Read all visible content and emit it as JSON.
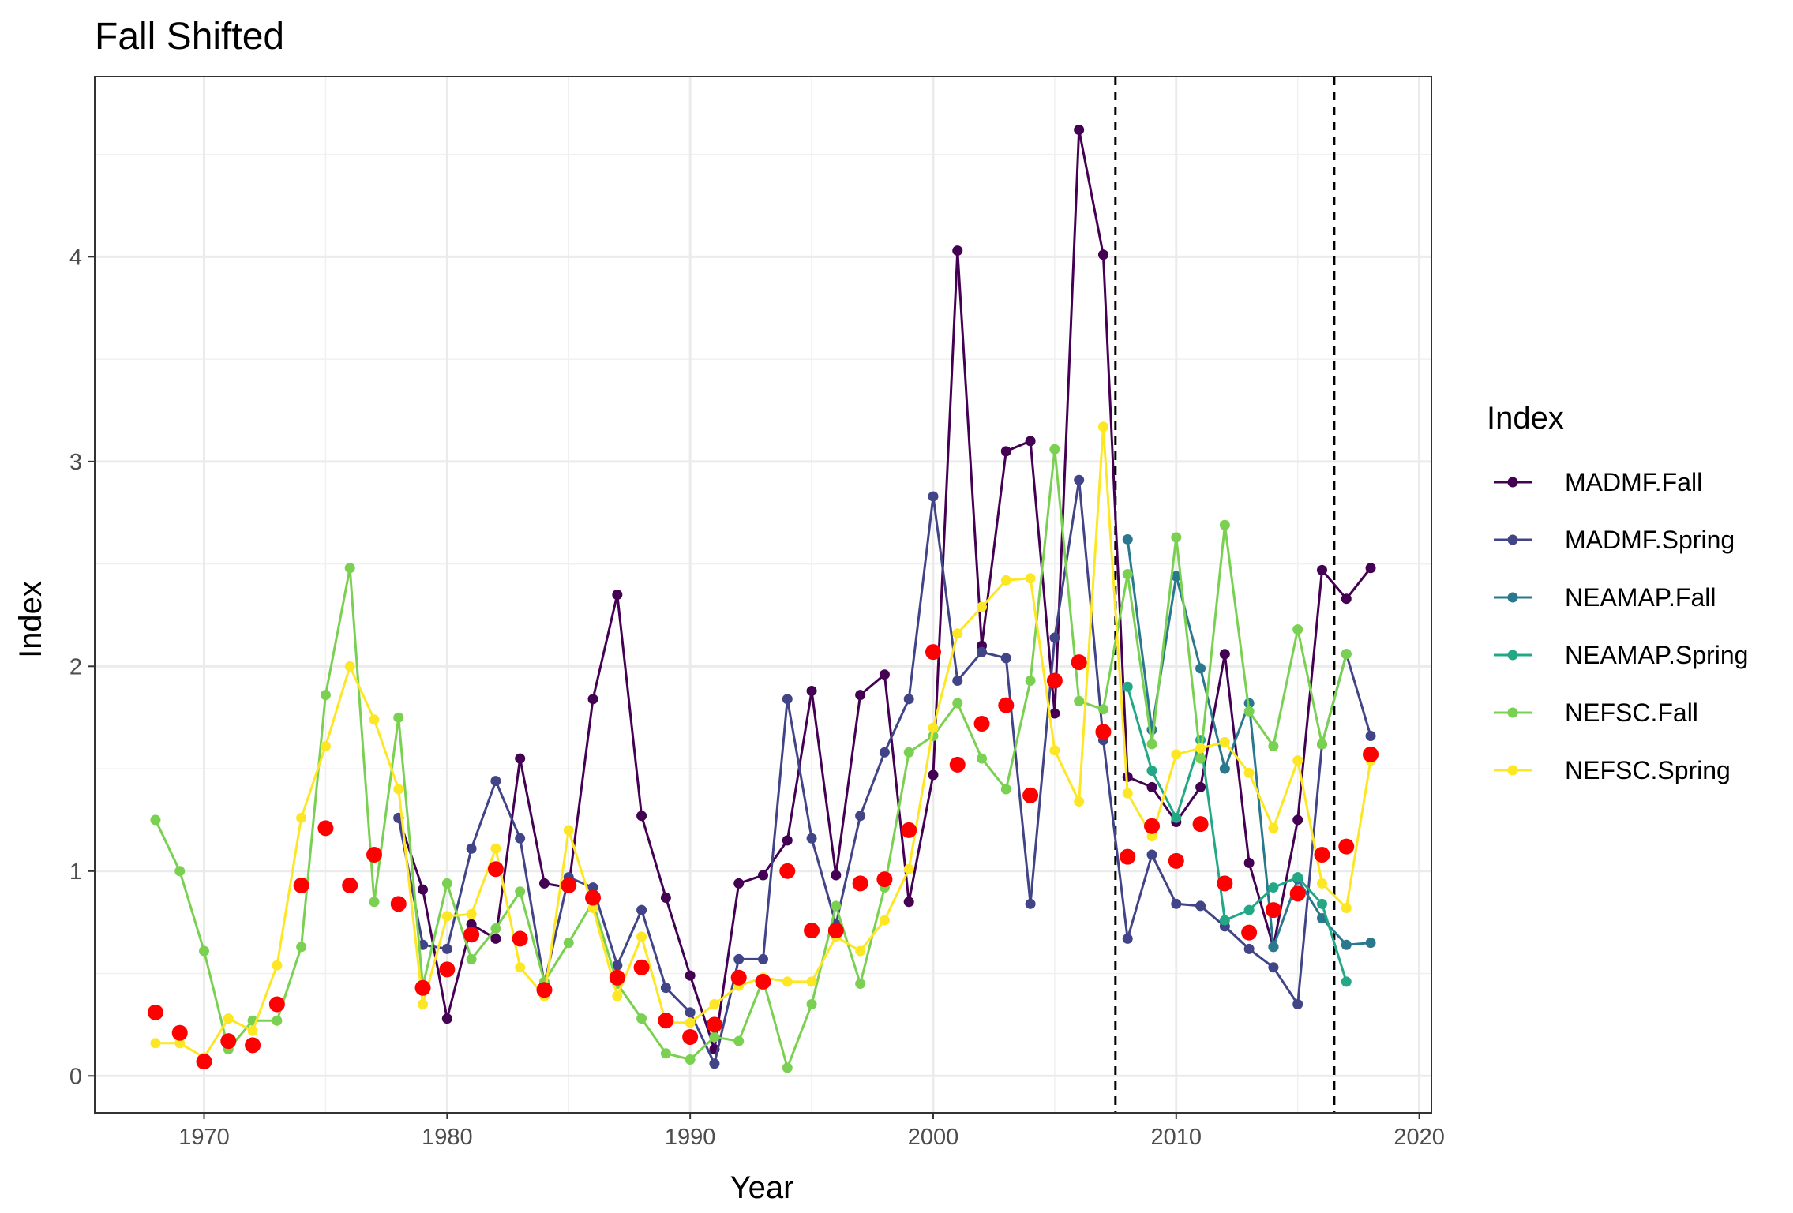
{
  "chart_data": {
    "type": "line",
    "title": "Fall Shifted",
    "xlabel": "Year",
    "ylabel": "Index",
    "xlim": [
      1965.5,
      2020.5
    ],
    "ylim": [
      -0.18,
      4.88
    ],
    "x_ticks": [
      1970,
      1980,
      1990,
      2000,
      2010,
      2020
    ],
    "y_ticks": [
      0,
      1,
      2,
      3,
      4
    ],
    "grid": true,
    "vlines": [
      2007.5,
      2016.5
    ],
    "legend": {
      "title": "Index",
      "position": "right"
    },
    "series": [
      {
        "name": "MADMF.Fall",
        "color": "#440154",
        "points": [
          [
            1978,
            1.26
          ],
          [
            1979,
            0.91
          ],
          [
            1980,
            0.28
          ],
          [
            1981,
            0.74
          ],
          [
            1982,
            0.67
          ],
          [
            1983,
            1.55
          ],
          [
            1984,
            0.94
          ],
          [
            1985,
            0.92
          ],
          [
            1986,
            1.84
          ],
          [
            1987,
            2.35
          ],
          [
            1988,
            1.27
          ],
          [
            1989,
            0.87
          ],
          [
            1990,
            0.49
          ],
          [
            1991,
            0.13
          ],
          [
            1992,
            0.94
          ],
          [
            1993,
            0.98
          ],
          [
            1994,
            1.15
          ],
          [
            1995,
            1.88
          ],
          [
            1996,
            0.98
          ],
          [
            1997,
            1.86
          ],
          [
            1998,
            1.96
          ],
          [
            1999,
            0.85
          ],
          [
            2000,
            1.47
          ],
          [
            2001,
            4.03
          ],
          [
            2002,
            2.1
          ],
          [
            2003,
            3.05
          ],
          [
            2004,
            3.1
          ],
          [
            2005,
            1.77
          ],
          [
            2006,
            4.62
          ],
          [
            2007,
            4.01
          ],
          [
            2008,
            1.46
          ],
          [
            2009,
            1.41
          ],
          [
            2010,
            1.24
          ],
          [
            2011,
            1.41
          ],
          [
            2012,
            2.06
          ],
          [
            2013,
            1.04
          ],
          [
            2014,
            0.63
          ],
          [
            2015,
            1.25
          ],
          [
            2016,
            2.47
          ],
          [
            2017,
            2.33
          ],
          [
            2018,
            2.48
          ]
        ]
      },
      {
        "name": "MADMF.Spring",
        "color": "#414487",
        "points": [
          [
            1978,
            1.26
          ],
          [
            1979,
            0.64
          ],
          [
            1980,
            0.62
          ],
          [
            1981,
            1.11
          ],
          [
            1982,
            1.44
          ],
          [
            1983,
            1.16
          ],
          [
            1984,
            0.45
          ],
          [
            1985,
            0.97
          ],
          [
            1986,
            0.92
          ],
          [
            1987,
            0.54
          ],
          [
            1988,
            0.81
          ],
          [
            1989,
            0.43
          ],
          [
            1990,
            0.31
          ],
          [
            1991,
            0.06
          ],
          [
            1992,
            0.57
          ],
          [
            1993,
            0.57
          ],
          [
            1994,
            1.84
          ],
          [
            1995,
            1.16
          ],
          [
            1996,
            0.74
          ],
          [
            1997,
            1.27
          ],
          [
            1998,
            1.58
          ],
          [
            1999,
            1.84
          ],
          [
            2000,
            2.83
          ],
          [
            2001,
            1.93
          ],
          [
            2002,
            2.07
          ],
          [
            2003,
            2.04
          ],
          [
            2004,
            0.84
          ],
          [
            2005,
            2.14
          ],
          [
            2006,
            2.91
          ],
          [
            2007,
            1.64
          ],
          [
            2008,
            0.67
          ],
          [
            2009,
            1.08
          ],
          [
            2010,
            0.84
          ],
          [
            2011,
            0.83
          ],
          [
            2012,
            0.73
          ],
          [
            2013,
            0.62
          ],
          [
            2014,
            0.53
          ],
          [
            2015,
            0.35
          ],
          [
            2016,
            1.62
          ],
          [
            2017,
            2.06
          ],
          [
            2018,
            1.66
          ]
        ]
      },
      {
        "name": "NEAMAP.Fall",
        "color": "#2A788E",
        "points": [
          [
            2008,
            2.62
          ],
          [
            2009,
            1.69
          ],
          [
            2010,
            2.44
          ],
          [
            2011,
            1.99
          ],
          [
            2012,
            1.5
          ],
          [
            2013,
            1.82
          ],
          [
            2014,
            0.63
          ],
          [
            2015,
            0.96
          ],
          [
            2016,
            0.77
          ],
          [
            2017,
            0.64
          ],
          [
            2018,
            0.65
          ]
        ]
      },
      {
        "name": "NEAMAP.Spring",
        "color": "#22A884",
        "points": [
          [
            2008,
            1.9
          ],
          [
            2009,
            1.49
          ],
          [
            2010,
            1.26
          ],
          [
            2011,
            1.64
          ],
          [
            2012,
            0.76
          ],
          [
            2013,
            0.81
          ],
          [
            2014,
            0.92
          ],
          [
            2015,
            0.97
          ],
          [
            2016,
            0.84
          ],
          [
            2017,
            0.46
          ]
        ]
      },
      {
        "name": "NEFSC.Fall",
        "color": "#7AD151",
        "points": [
          [
            1968,
            1.25
          ],
          [
            1969,
            1.0
          ],
          [
            1970,
            0.61
          ],
          [
            1971,
            0.13
          ],
          [
            1972,
            0.27
          ],
          [
            1973,
            0.27
          ],
          [
            1974,
            0.63
          ],
          [
            1975,
            1.86
          ],
          [
            1976,
            2.48
          ],
          [
            1977,
            0.85
          ],
          [
            1978,
            1.75
          ],
          [
            1979,
            0.44
          ],
          [
            1980,
            0.94
          ],
          [
            1981,
            0.57
          ],
          [
            1982,
            0.72
          ],
          [
            1983,
            0.9
          ],
          [
            1984,
            0.46
          ],
          [
            1985,
            0.65
          ],
          [
            1986,
            0.85
          ],
          [
            1987,
            0.45
          ],
          [
            1988,
            0.28
          ],
          [
            1989,
            0.11
          ],
          [
            1990,
            0.08
          ],
          [
            1991,
            0.19
          ],
          [
            1992,
            0.17
          ],
          [
            1993,
            0.47
          ],
          [
            1994,
            0.04
          ],
          [
            1995,
            0.35
          ],
          [
            1996,
            0.83
          ],
          [
            1997,
            0.45
          ],
          [
            1998,
            0.92
          ],
          [
            1999,
            1.58
          ],
          [
            2000,
            1.66
          ],
          [
            2001,
            1.82
          ],
          [
            2002,
            1.55
          ],
          [
            2003,
            1.4
          ],
          [
            2004,
            1.93
          ],
          [
            2005,
            3.06
          ],
          [
            2006,
            1.83
          ],
          [
            2007,
            1.79
          ],
          [
            2008,
            2.45
          ],
          [
            2009,
            1.62
          ],
          [
            2010,
            2.63
          ],
          [
            2011,
            1.55
          ],
          [
            2012,
            2.69
          ],
          [
            2013,
            1.78
          ],
          [
            2014,
            1.61
          ],
          [
            2015,
            2.18
          ],
          [
            2016,
            1.62
          ],
          [
            2017,
            2.06
          ]
        ]
      },
      {
        "name": "NEFSC.Spring",
        "color": "#FDE725",
        "points": [
          [
            1968,
            0.16
          ],
          [
            1969,
            0.16
          ],
          [
            1970,
            0.09
          ],
          [
            1971,
            0.28
          ],
          [
            1972,
            0.22
          ],
          [
            1973,
            0.54
          ],
          [
            1974,
            1.26
          ],
          [
            1975,
            1.61
          ],
          [
            1976,
            2.0
          ],
          [
            1977,
            1.74
          ],
          [
            1978,
            1.4
          ],
          [
            1979,
            0.35
          ],
          [
            1980,
            0.78
          ],
          [
            1981,
            0.79
          ],
          [
            1982,
            1.11
          ],
          [
            1983,
            0.53
          ],
          [
            1984,
            0.39
          ],
          [
            1985,
            1.2
          ],
          [
            1986,
            0.82
          ],
          [
            1987,
            0.39
          ],
          [
            1988,
            0.68
          ],
          [
            1989,
            0.26
          ],
          [
            1990,
            0.26
          ],
          [
            1991,
            0.35
          ],
          [
            1992,
            0.44
          ],
          [
            1993,
            0.48
          ],
          [
            1994,
            0.46
          ],
          [
            1995,
            0.46
          ],
          [
            1996,
            0.68
          ],
          [
            1997,
            0.61
          ],
          [
            1998,
            0.76
          ],
          [
            1999,
            1.01
          ],
          [
            2000,
            1.7
          ],
          [
            2001,
            2.16
          ],
          [
            2002,
            2.29
          ],
          [
            2003,
            2.42
          ],
          [
            2004,
            2.43
          ],
          [
            2005,
            1.59
          ],
          [
            2006,
            1.34
          ],
          [
            2007,
            3.17
          ],
          [
            2008,
            1.38
          ],
          [
            2009,
            1.17
          ],
          [
            2010,
            1.57
          ],
          [
            2011,
            1.6
          ],
          [
            2012,
            1.63
          ],
          [
            2013,
            1.48
          ],
          [
            2014,
            1.21
          ],
          [
            2015,
            1.54
          ],
          [
            2016,
            0.94
          ],
          [
            2017,
            0.82
          ],
          [
            2018,
            1.54
          ]
        ]
      }
    ],
    "points_series": {
      "color": "#FF0000",
      "points": [
        [
          1968,
          0.31
        ],
        [
          1969,
          0.21
        ],
        [
          1970,
          0.07
        ],
        [
          1971,
          0.17
        ],
        [
          1972,
          0.15
        ],
        [
          1973,
          0.35
        ],
        [
          1974,
          0.93
        ],
        [
          1975,
          1.21
        ],
        [
          1976,
          0.93
        ],
        [
          1977,
          1.08
        ],
        [
          1978,
          0.84
        ],
        [
          1979,
          0.43
        ],
        [
          1980,
          0.52
        ],
        [
          1981,
          0.69
        ],
        [
          1982,
          1.01
        ],
        [
          1983,
          0.67
        ],
        [
          1984,
          0.42
        ],
        [
          1985,
          0.93
        ],
        [
          1986,
          0.87
        ],
        [
          1987,
          0.48
        ],
        [
          1988,
          0.53
        ],
        [
          1989,
          0.27
        ],
        [
          1990,
          0.19
        ],
        [
          1991,
          0.25
        ],
        [
          1992,
          0.48
        ],
        [
          1993,
          0.46
        ],
        [
          1994,
          1.0
        ],
        [
          1995,
          0.71
        ],
        [
          1996,
          0.71
        ],
        [
          1997,
          0.94
        ],
        [
          1998,
          0.96
        ],
        [
          1999,
          1.2
        ],
        [
          2000,
          2.07
        ],
        [
          2001,
          1.52
        ],
        [
          2002,
          1.72
        ],
        [
          2003,
          1.81
        ],
        [
          2004,
          1.37
        ],
        [
          2005,
          1.93
        ],
        [
          2006,
          2.02
        ],
        [
          2007,
          1.68
        ],
        [
          2008,
          1.07
        ],
        [
          2009,
          1.22
        ],
        [
          2010,
          1.05
        ],
        [
          2011,
          1.23
        ],
        [
          2012,
          0.94
        ],
        [
          2013,
          0.7
        ],
        [
          2014,
          0.81
        ],
        [
          2015,
          0.89
        ],
        [
          2016,
          1.08
        ],
        [
          2017,
          1.12
        ],
        [
          2018,
          1.57
        ]
      ]
    }
  }
}
